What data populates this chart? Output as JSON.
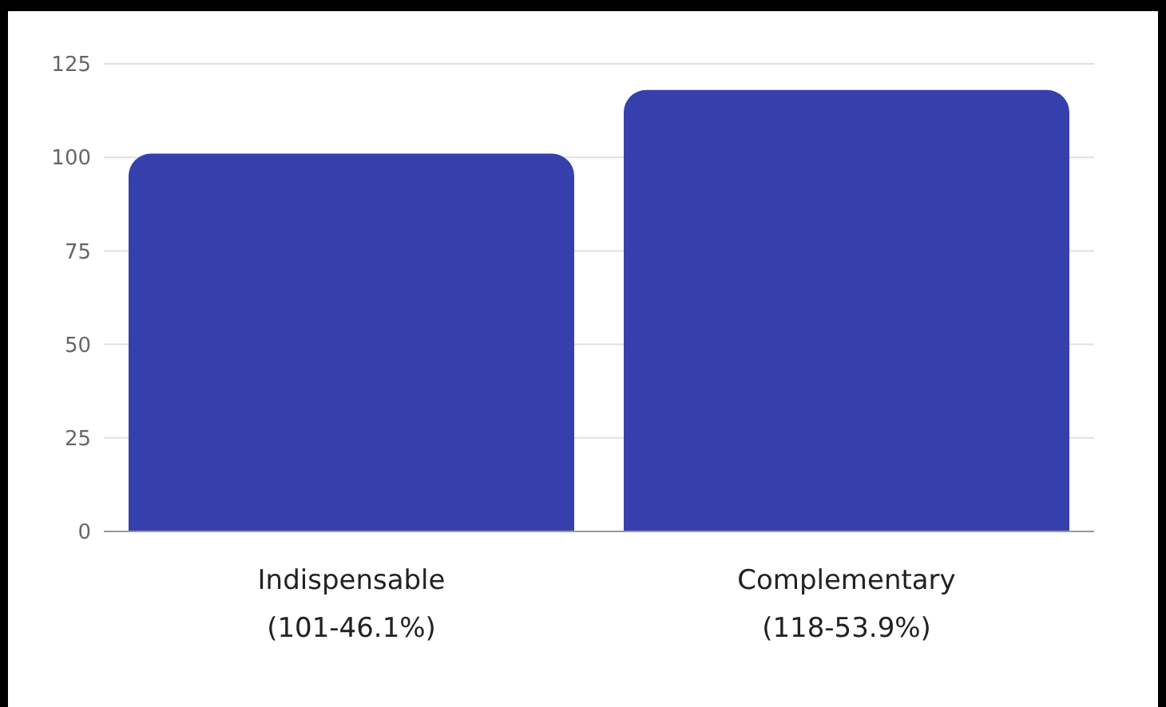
{
  "chart_data": {
    "type": "bar",
    "categories": [
      "Indispensable (101-46.1%)",
      "Complementary (118-53.9%)"
    ],
    "values": [
      101,
      118
    ],
    "color": "#3640ad",
    "ylim": [
      0,
      125
    ],
    "yticks": [
      0,
      25,
      50,
      75,
      100,
      125
    ],
    "grid": "y",
    "legend": false
  }
}
